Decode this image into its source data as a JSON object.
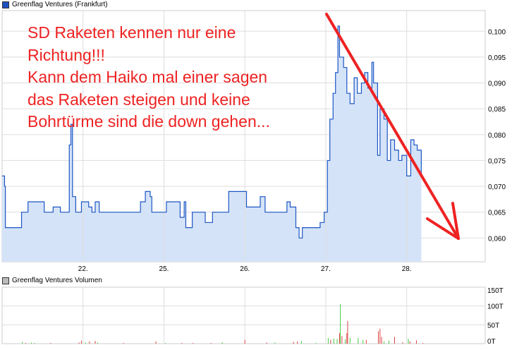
{
  "chart_data": [
    {
      "type": "line",
      "legend": "Greenflag Ventures (Frankfurt)",
      "legend_color": "#1f4fbf",
      "line_color": "#1c56c4",
      "fill_color": "#d5e3f8",
      "x_ticks": [
        {
          "pos": 1,
          "label": "22."
        },
        {
          "pos": 2,
          "label": "25."
        },
        {
          "pos": 3,
          "label": "26."
        },
        {
          "pos": 4,
          "label": "27."
        },
        {
          "pos": 5,
          "label": "28."
        }
      ],
      "xlim": [
        0,
        5.97
      ],
      "y_ticks": [
        "0,060",
        "0,065",
        "0,070",
        "0,075",
        "0,080",
        "0,085",
        "0,090",
        "0,095",
        "0,100"
      ],
      "ylim": [
        0.0554,
        0.104
      ],
      "grid": true,
      "points": [
        [
          0,
          0.072
        ],
        [
          0.03,
          0.07
        ],
        [
          0.04,
          0.062
        ],
        [
          0.22,
          0.062
        ],
        [
          0.24,
          0.065
        ],
        [
          0.32,
          0.067
        ],
        [
          0.5,
          0.067
        ],
        [
          0.52,
          0.065
        ],
        [
          0.63,
          0.066
        ],
        [
          0.72,
          0.065
        ],
        [
          0.8,
          0.065
        ],
        [
          0.83,
          0.078
        ],
        [
          0.85,
          0.082
        ],
        [
          0.87,
          0.068
        ],
        [
          0.91,
          0.065
        ],
        [
          0.98,
          0.067
        ],
        [
          1.07,
          0.066
        ],
        [
          1.11,
          0.065
        ],
        [
          1.15,
          0.067
        ],
        [
          1.2,
          0.065
        ],
        [
          1.68,
          0.065
        ],
        [
          1.71,
          0.067
        ],
        [
          1.77,
          0.069
        ],
        [
          1.83,
          0.068
        ],
        [
          1.85,
          0.065
        ],
        [
          2.03,
          0.067
        ],
        [
          2.16,
          0.067
        ],
        [
          2.2,
          0.064
        ],
        [
          2.25,
          0.067
        ],
        [
          2.27,
          0.062
        ],
        [
          2.32,
          0.062
        ],
        [
          2.35,
          0.065
        ],
        [
          2.51,
          0.063
        ],
        [
          2.6,
          0.065
        ],
        [
          2.77,
          0.065
        ],
        [
          2.8,
          0.069
        ],
        [
          2.99,
          0.069
        ],
        [
          3.02,
          0.066
        ],
        [
          3.17,
          0.066
        ],
        [
          3.19,
          0.068
        ],
        [
          3.25,
          0.065
        ],
        [
          3.34,
          0.065
        ],
        [
          3.52,
          0.067
        ],
        [
          3.56,
          0.066
        ],
        [
          3.63,
          0.062
        ],
        [
          3.67,
          0.06
        ],
        [
          3.71,
          0.062
        ],
        [
          3.82,
          0.062
        ],
        [
          3.93,
          0.063
        ],
        [
          3.98,
          0.065
        ],
        [
          4.02,
          0.075
        ],
        [
          4.05,
          0.083
        ],
        [
          4.09,
          0.088
        ],
        [
          4.12,
          0.092
        ],
        [
          4.15,
          0.101
        ],
        [
          4.17,
          0.095
        ],
        [
          4.22,
          0.093
        ],
        [
          4.26,
          0.088
        ],
        [
          4.3,
          0.086
        ],
        [
          4.35,
          0.091
        ],
        [
          4.39,
          0.088
        ],
        [
          4.44,
          0.09
        ],
        [
          4.48,
          0.092
        ],
        [
          4.52,
          0.089
        ],
        [
          4.57,
          0.094
        ],
        [
          4.59,
          0.09
        ],
        [
          4.64,
          0.076
        ],
        [
          4.67,
          0.085
        ],
        [
          4.72,
          0.083
        ],
        [
          4.76,
          0.075
        ],
        [
          4.8,
          0.079
        ],
        [
          4.85,
          0.077
        ],
        [
          4.9,
          0.075
        ],
        [
          4.94,
          0.076
        ],
        [
          5.0,
          0.072
        ],
        [
          5.05,
          0.079
        ],
        [
          5.09,
          0.078
        ],
        [
          5.13,
          0.077
        ],
        [
          5.18,
          0.072
        ]
      ]
    },
    {
      "type": "bar",
      "legend": "Greenflag Ventures Volumen",
      "legend_color": "#bbbbbb",
      "up_color": "#44cc44",
      "down_color": "#dd4444",
      "y_ticks": [
        "0T",
        "50T",
        "100T",
        "150T"
      ],
      "ylim": [
        0,
        150
      ],
      "bars": [
        [
          0.25,
          5,
          "up"
        ],
        [
          0.29,
          2,
          "down"
        ],
        [
          0.36,
          3,
          "up"
        ],
        [
          0.4,
          2,
          "up"
        ],
        [
          0.6,
          2,
          "down"
        ],
        [
          0.95,
          3,
          "down"
        ],
        [
          0.98,
          8,
          "down"
        ],
        [
          1.03,
          3,
          "up"
        ],
        [
          1.08,
          6,
          "down"
        ],
        [
          1.15,
          7,
          "down"
        ],
        [
          1.18,
          3,
          "up"
        ],
        [
          1.5,
          2,
          "down"
        ],
        [
          1.9,
          6,
          "down"
        ],
        [
          2.02,
          2,
          "up"
        ],
        [
          2.22,
          2,
          "down"
        ],
        [
          2.36,
          2,
          "down"
        ],
        [
          2.58,
          2,
          "down"
        ],
        [
          2.72,
          4,
          "up"
        ],
        [
          3.0,
          10,
          "down"
        ],
        [
          3.27,
          3,
          "down"
        ],
        [
          3.37,
          3,
          "up"
        ],
        [
          3.6,
          5,
          "down"
        ],
        [
          3.65,
          6,
          "down"
        ],
        [
          3.7,
          7,
          "up"
        ],
        [
          3.88,
          2,
          "up"
        ],
        [
          4.03,
          15,
          "up"
        ],
        [
          4.06,
          10,
          "down"
        ],
        [
          4.1,
          13,
          "up"
        ],
        [
          4.14,
          12,
          "up"
        ],
        [
          4.17,
          28,
          "down"
        ],
        [
          4.18,
          105,
          "up"
        ],
        [
          4.2,
          20,
          "down"
        ],
        [
          4.24,
          11,
          "up"
        ],
        [
          4.26,
          28,
          "down"
        ],
        [
          4.27,
          60,
          "down"
        ],
        [
          4.3,
          15,
          "up"
        ],
        [
          4.4,
          15,
          "up"
        ],
        [
          4.46,
          10,
          "up"
        ],
        [
          4.5,
          10,
          "down"
        ],
        [
          4.65,
          33,
          "down"
        ],
        [
          4.67,
          40,
          "down"
        ],
        [
          4.69,
          18,
          "down"
        ],
        [
          4.72,
          6,
          "up"
        ],
        [
          4.78,
          8,
          "up"
        ],
        [
          4.85,
          18,
          "down"
        ],
        [
          4.95,
          4,
          "down"
        ],
        [
          5.02,
          13,
          "up"
        ],
        [
          5.04,
          6,
          "down"
        ],
        [
          5.12,
          9,
          "down"
        ],
        [
          5.2,
          2,
          "down"
        ]
      ]
    }
  ],
  "annotation": {
    "lines": [
      "SD Raketen kennen nur eine",
      "Richtung!!!",
      "Kann dem Haiko mal einer sagen",
      "das Raketen steigen und keine",
      "Bohrtürme sind die down gehen..."
    ],
    "color": "#ee2222"
  }
}
